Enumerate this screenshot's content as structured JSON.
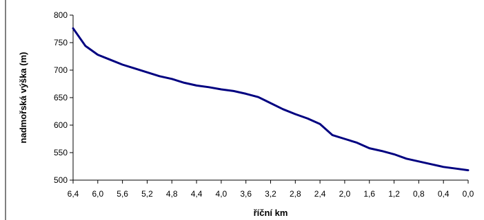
{
  "chart_data": {
    "type": "line",
    "xlabel": "říční km",
    "ylabel": "nadmořská výška (m)",
    "x_reversed": true,
    "xlim": [
      6.4,
      0.0
    ],
    "ylim": [
      500,
      800
    ],
    "x_ticks": [
      6.4,
      6.0,
      5.6,
      5.2,
      4.8,
      4.4,
      4.0,
      3.6,
      3.2,
      2.8,
      2.4,
      2.0,
      1.6,
      1.2,
      0.8,
      0.4,
      0.0
    ],
    "x_tick_labels": [
      "6,4",
      "6,0",
      "5,6",
      "5,2",
      "4,8",
      "4,4",
      "4,0",
      "3,6",
      "3,2",
      "2,8",
      "2,4",
      "2,0",
      "1,6",
      "1,2",
      "0,8",
      "0,4",
      "0,0"
    ],
    "y_ticks": [
      500,
      550,
      600,
      650,
      700,
      750,
      800
    ],
    "y_tick_labels": [
      "500",
      "550",
      "600",
      "650",
      "700",
      "750",
      "800"
    ],
    "grid": false,
    "legend": "none",
    "line_color": "#000080",
    "x": [
      6.4,
      6.2,
      6.0,
      5.8,
      5.6,
      5.4,
      5.2,
      5.0,
      4.8,
      4.6,
      4.4,
      4.2,
      4.0,
      3.8,
      3.6,
      3.4,
      3.2,
      3.0,
      2.8,
      2.6,
      2.4,
      2.2,
      2.0,
      1.8,
      1.6,
      1.4,
      1.2,
      1.0,
      0.8,
      0.6,
      0.4,
      0.2,
      0.0
    ],
    "y": [
      776,
      744,
      728,
      719,
      710,
      703,
      696,
      689,
      684,
      677,
      672,
      669,
      665,
      662,
      657,
      651,
      640,
      629,
      620,
      612,
      602,
      582,
      575,
      568,
      558,
      553,
      547,
      539,
      534,
      529,
      524,
      521,
      518
    ]
  }
}
